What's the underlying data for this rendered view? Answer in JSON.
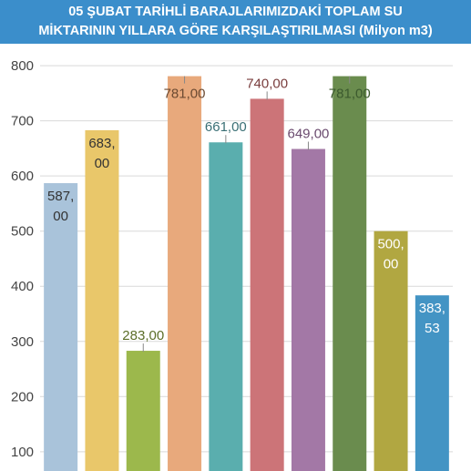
{
  "chart_data": {
    "type": "bar",
    "title_lines": [
      "05 ŞUBAT TARİHLİ BARAJLARIMIZDAKİ TOPLAM SU",
      "MİKTARININ YILLARA GÖRE KARŞILAŞTIRILMASI (Milyon m3)"
    ],
    "xlabel": "",
    "ylabel": "",
    "ylim": [
      65,
      820
    ],
    "yticks": [
      100,
      200,
      300,
      400,
      500,
      600,
      700,
      800
    ],
    "ytick_labels": [
      "100",
      "200",
      "300",
      "400",
      "500",
      "600",
      "700",
      "800"
    ],
    "grid": true,
    "legend": "none",
    "values": [
      587.0,
      683.0,
      283.0,
      781.0,
      661.0,
      740.0,
      649.0,
      781.0,
      500.0,
      383.53
    ],
    "labels": [
      "587,\n00",
      "683,\n00",
      "283,00",
      "781,00",
      "661,00",
      "740,00",
      "649,00",
      "781,00",
      "500,\n00",
      "383,\n53"
    ],
    "colors": [
      "#a9c3da",
      "#e9c76a",
      "#9cb84c",
      "#e8a97c",
      "#5aaeae",
      "#cc7478",
      "#a378a6",
      "#6a8c4e",
      "#b1a741",
      "#4394c4"
    ],
    "label_colors": [
      "#333333",
      "#333333",
      "#5b6e28",
      "#6b4a32",
      "#3a6f75",
      "#7a3e3e",
      "#6a4a6e",
      "#3c5a2e",
      "#ffffff",
      "#ffffff"
    ],
    "title_bg": "#3b8ecb"
  }
}
